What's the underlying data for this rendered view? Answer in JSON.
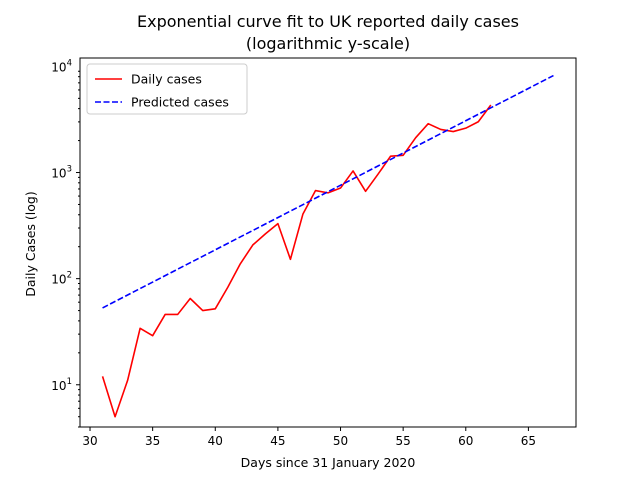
{
  "chart_data": {
    "type": "line",
    "title": "Exponential curve fit to UK reported daily cases",
    "subtitle": "(logarithmic y-scale)",
    "xlabel": "Days since 31 January 2020",
    "ylabel": "Daily Cases (log)",
    "xlim": [
      29.2,
      68.8
    ],
    "ylim": [
      4.0,
      12000
    ],
    "yscale": "log",
    "x_ticks": [
      30,
      35,
      40,
      45,
      50,
      55,
      60,
      65
    ],
    "x_tick_labels": [
      "30",
      "35",
      "40",
      "45",
      "50",
      "55",
      "60",
      "65"
    ],
    "y_ticks": [
      10,
      100,
      1000,
      10000
    ],
    "y_tick_labels": [
      {
        "base": "10",
        "exp": "1"
      },
      {
        "base": "10",
        "exp": "2"
      },
      {
        "base": "10",
        "exp": "3"
      },
      {
        "base": "10",
        "exp": "4"
      }
    ],
    "grid": false,
    "legend_position": "upper-left",
    "series": [
      {
        "name": "Daily cases",
        "color": "#ff0000",
        "style": "solid",
        "x": [
          31,
          32,
          33,
          34,
          35,
          36,
          37,
          38,
          39,
          40,
          41,
          42,
          43,
          44,
          45,
          46,
          47,
          48,
          49,
          50,
          51,
          52,
          53,
          54,
          55,
          56,
          57,
          58,
          59,
          60,
          61,
          62
        ],
        "y": [
          12,
          5,
          11,
          34,
          29,
          46,
          46,
          65,
          50,
          52,
          83,
          138,
          208,
          264,
          330,
          152,
          407,
          676,
          643,
          714,
          1035,
          665,
          967,
          1427,
          1452,
          2129,
          2885,
          2546,
          2433,
          2619,
          3009,
          4324
        ]
      },
      {
        "name": "Predicted cases",
        "color": "#0000ff",
        "style": "dashed",
        "x": [
          31,
          67
        ],
        "y": [
          53,
          8200
        ]
      }
    ]
  }
}
